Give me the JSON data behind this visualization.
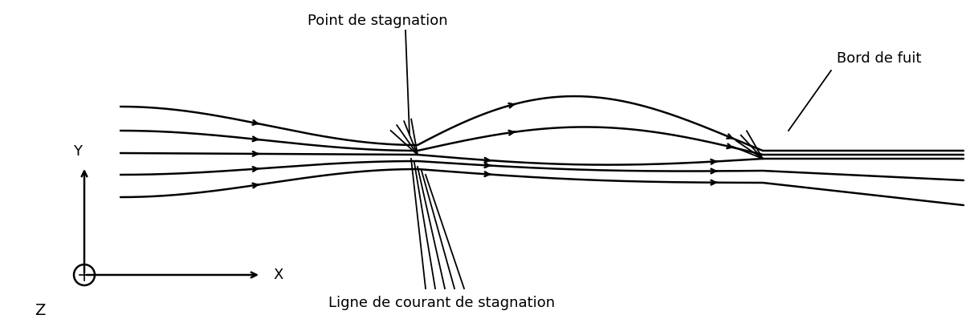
{
  "background_color": "#ffffff",
  "line_color": "#000000",
  "line_width": 1.8,
  "label_point_stagnation": "Point de stagnation",
  "label_bord_de_fuit": "Bord de fuit",
  "label_ligne_courant": "Ligne de courant de stagnation",
  "label_x": "X",
  "label_z": "Z",
  "label_y": "Y",
  "figsize": [
    12.18,
    4.08
  ],
  "dpi": 100,
  "xlim": [
    0,
    12.18
  ],
  "ylim": [
    0,
    4.08
  ]
}
